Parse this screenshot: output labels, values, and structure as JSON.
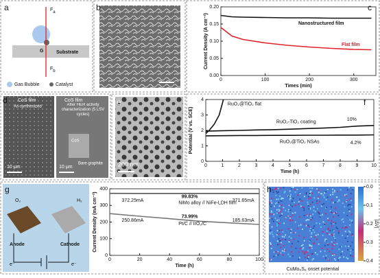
{
  "panels": {
    "a": {
      "label": "a",
      "force_top": "F",
      "force_top_sub": "a",
      "gravity": "G",
      "substrate": "Substrate",
      "force_bottom": "F",
      "force_bottom_sub": "b",
      "legend_bubble": "Gas Bubble",
      "legend_catalyst": "Catalyst"
    },
    "b": {
      "label": "b"
    },
    "c": {
      "label": "c",
      "chart": {
        "type": "line",
        "xlabel": "Times (min)",
        "ylabel": "Current Density (A cm⁻²)",
        "xlim": [
          0,
          350
        ],
        "ylim": [
          0,
          0.2
        ],
        "xticks": [
          0,
          100,
          200,
          300
        ],
        "yticks": [
          {
            "value": 0,
            "label": "0.00"
          },
          {
            "value": 0.05,
            "label": "0.05"
          },
          {
            "value": 0.1,
            "label": "0.10"
          },
          {
            "value": 0.15,
            "label": "0.15"
          },
          {
            "value": 0.2,
            "label": "0.20"
          }
        ],
        "series": [
          {
            "name": "Nanostructured film",
            "color": "#111111",
            "x": [
              0,
              25,
              50,
              100,
              150,
              200,
              250,
              300,
              340
            ],
            "values": [
              0.175,
              0.171,
              0.17,
              0.169,
              0.168,
              0.168,
              0.167,
              0.167,
              0.167
            ]
          },
          {
            "name": "Flat film",
            "color": "#e0202a",
            "x": [
              0,
              25,
              50,
              100,
              150,
              200,
              250,
              300,
              340
            ],
            "values": [
              0.14,
              0.115,
              0.105,
              0.095,
              0.088,
              0.083,
              0.079,
              0.076,
              0.075
            ]
          }
        ]
      }
    },
    "d": {
      "label": "d",
      "left_title": "CoS film",
      "left_sub": "As-synthesized",
      "right_title": "CoS film",
      "right_sub": "After HER activity characterization (5 LSV cycles)",
      "cos": "CoS",
      "graphite": "Bare graphite",
      "scale_left": "10 μm",
      "scale_right": "10 μm"
    },
    "e": {
      "label": "e",
      "scale": "200 nm"
    },
    "f": {
      "label": "f",
      "chart": {
        "type": "line",
        "xlabel": "Time (h)",
        "ylabel": "Potential (V vs. SCE)",
        "xlim": [
          0,
          10
        ],
        "ylim": [
          0,
          4
        ],
        "xticks": [
          0,
          1,
          2,
          3,
          4,
          5,
          6,
          7,
          8,
          9,
          10
        ],
        "yticks": [
          0,
          1,
          2,
          3,
          4
        ],
        "series": [
          {
            "name": "RuO₂@TiO₂ flat",
            "color": "#111111",
            "x": [
              0,
              0.2,
              0.5,
              0.8,
              1,
              1.05
            ],
            "values": [
              1.8,
              2,
              2.4,
              3,
              3.8,
              4
            ]
          },
          {
            "name": "RuO₂-TiO₂ coating",
            "color": "#111111",
            "x": [
              0,
              1,
              2,
              3,
              4,
              5,
              6,
              7,
              8,
              9,
              10
            ],
            "values": [
              1.95,
              1.98,
              2,
              2.03,
              2.05,
              2.08,
              2.12,
              2.15,
              2.2,
              2.28,
              2.32
            ]
          },
          {
            "name": "RuO₂@TiO₂ NSAs",
            "color": "#111111",
            "x": [
              0,
              1,
              2,
              3,
              4,
              5,
              6,
              7,
              8,
              9,
              10
            ],
            "values": [
              1.65,
              1.66,
              1.67,
              1.67,
              1.68,
              1.68,
              1.69,
              1.69,
              1.7,
              1.7,
              1.71
            ]
          }
        ],
        "note_coating": "10%",
        "note_nsas": "4.2%"
      }
    },
    "g": {
      "label": "g",
      "o2": "O₂",
      "h2": "H₂",
      "anode": "Anode",
      "cathode": "Cathode",
      "e_left": "e⁻",
      "e_right": "e⁻",
      "chart": {
        "type": "line",
        "xlabel": "Time (h)",
        "ylabel": "Current Density (mA cm⁻²)",
        "xlim": [
          0,
          100
        ],
        "ylim": [
          0,
          400
        ],
        "xticks": [
          0,
          20,
          40,
          60,
          80,
          100
        ],
        "yticks": [
          0,
          100,
          200,
          300,
          400
        ],
        "series": [
          {
            "name": "NiMo alloy // NiFe-LDH film",
            "color": "#555555",
            "x": [
              0,
              20,
              40,
              60,
              80,
              100
            ],
            "values": [
              372.25,
              372.1,
              372,
              371.9,
              371.8,
              371.65
            ]
          },
          {
            "name": "Pt/C // IrO₂/C",
            "color": "#777777",
            "x": [
              0,
              20,
              40,
              60,
              80,
              100
            ],
            "values": [
              250.86,
              235,
              220,
              205,
              195,
              185.63
            ]
          }
        ],
        "start_top": "372.25mA",
        "end_top": "371.65mA",
        "ratio_top": "99.83%",
        "start_bottom": "250.86mA",
        "end_bottom": "185.63mA",
        "ratio_bottom": "73.99%"
      }
    },
    "h": {
      "label": "h",
      "caption": "CuMo₆S₈ onset potential",
      "colorbar_label": "|ΔV|",
      "colorbar_ticks": [
        {
          "value": 0,
          "label": "0.0"
        },
        {
          "value": 0.1,
          "label": "0.1"
        },
        {
          "value": 0.2,
          "label": "0.2"
        },
        {
          "value": 0.3,
          "label": "0.3"
        },
        {
          "value": 0.4,
          "label": "0.4"
        }
      ],
      "colorbar_lim": [
        0,
        0.4
      ]
    }
  }
}
